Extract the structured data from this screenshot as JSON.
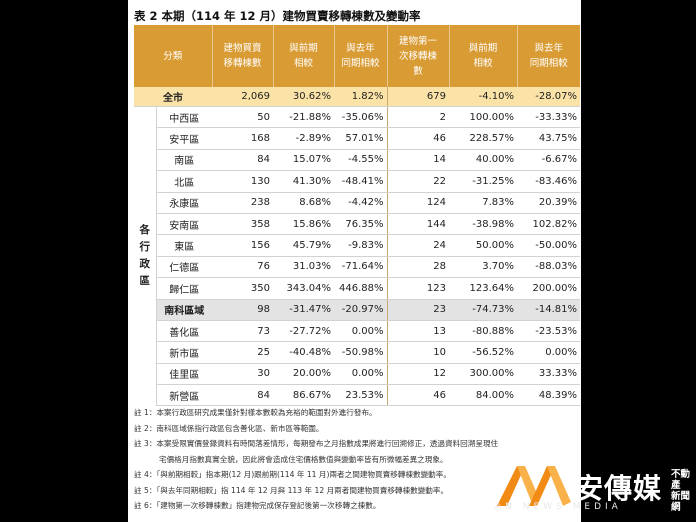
{
  "title": "表 2 本期（114 年 12 月）建物買賣移轉棟數及變動率",
  "headers": {
    "category": "分類",
    "transfers_line1": "建物買賣",
    "transfers_line2": "移轉棟數",
    "mom_line1": "與前期",
    "mom_line2": "相較",
    "yoy_line1": "與去年",
    "yoy_line2": "同期相較",
    "first_line1": "建物第一",
    "first_line2": "次移轉棟",
    "first_line3": "數",
    "first_mom_line1": "與前期",
    "first_mom_line2": "相較",
    "first_yoy_line1": "與去年",
    "first_yoy_line2": "同期相較"
  },
  "total": {
    "name": "全市",
    "transfers": "2,069",
    "mom": "30.62%",
    "yoy": "1.82%",
    "first": "679",
    "first_mom": "-4.10%",
    "first_yoy": "-28.07%"
  },
  "group_label": [
    "各",
    "行",
    "政",
    "區"
  ],
  "rows": [
    {
      "name": "中西區",
      "transfers": "50",
      "mom": "-21.88%",
      "yoy": "-35.06%",
      "first": "2",
      "first_mom": "100.00%",
      "first_yoy": "-33.33%"
    },
    {
      "name": "安平區",
      "transfers": "168",
      "mom": "-2.89%",
      "yoy": "57.01%",
      "first": "46",
      "first_mom": "228.57%",
      "first_yoy": "43.75%"
    },
    {
      "name": "南區",
      "transfers": "84",
      "mom": "15.07%",
      "yoy": "-4.55%",
      "first": "14",
      "first_mom": "40.00%",
      "first_yoy": "-6.67%"
    },
    {
      "name": "北區",
      "transfers": "130",
      "mom": "41.30%",
      "yoy": "-48.41%",
      "first": "22",
      "first_mom": "-31.25%",
      "first_yoy": "-83.46%"
    },
    {
      "name": "永康區",
      "transfers": "238",
      "mom": "8.68%",
      "yoy": "-4.42%",
      "first": "124",
      "first_mom": "7.83%",
      "first_yoy": "20.39%"
    },
    {
      "name": "安南區",
      "transfers": "358",
      "mom": "15.86%",
      "yoy": "76.35%",
      "first": "144",
      "first_mom": "-38.98%",
      "first_yoy": "102.82%"
    },
    {
      "name": "東區",
      "transfers": "156",
      "mom": "45.79%",
      "yoy": "-9.83%",
      "first": "24",
      "first_mom": "50.00%",
      "first_yoy": "-50.00%"
    },
    {
      "name": "仁德區",
      "transfers": "76",
      "mom": "31.03%",
      "yoy": "-71.64%",
      "first": "28",
      "first_mom": "3.70%",
      "first_yoy": "-88.03%"
    },
    {
      "name": "歸仁區",
      "transfers": "350",
      "mom": "343.04%",
      "yoy": "446.88%",
      "first": "123",
      "first_mom": "123.64%",
      "first_yoy": "200.00%"
    },
    {
      "name": "南科區域",
      "transfers": "98",
      "mom": "-31.47%",
      "yoy": "-20.97%",
      "first": "23",
      "first_mom": "-74.73%",
      "first_yoy": "-14.81%",
      "highlight": true
    },
    {
      "name": "善化區",
      "transfers": "73",
      "mom": "-27.72%",
      "yoy": "0.00%",
      "first": "13",
      "first_mom": "-80.88%",
      "first_yoy": "-23.53%"
    },
    {
      "name": "新市區",
      "transfers": "25",
      "mom": "-40.48%",
      "yoy": "-50.98%",
      "first": "10",
      "first_mom": "-56.52%",
      "first_yoy": "0.00%"
    },
    {
      "name": "佳里區",
      "transfers": "30",
      "mom": "20.00%",
      "yoy": "0.00%",
      "first": "12",
      "first_mom": "300.00%",
      "first_yoy": "33.33%"
    },
    {
      "name": "新營區",
      "transfers": "84",
      "mom": "86.67%",
      "yoy": "23.53%",
      "first": "46",
      "first_mom": "84.00%",
      "first_yoy": "48.39%"
    }
  ],
  "notes": [
    {
      "text": "註 1：本案行政區研究成果僅針對樣本數較為充裕的範圍對外進行發布。"
    },
    {
      "text": "註 2：南科區域係指行政區包含善化區、新市區等範圍。"
    },
    {
      "text": "註 3：本案受限實價登錄資料有時間落差情形，每期發布之月指數成果將進行回溯修正，透過資料回溯呈現住"
    },
    {
      "text": "宅價格月指數真實全貌，因此將會造成住宅價格數值與變動率皆有所微幅差異之現象。",
      "cont": true
    },
    {
      "text": "註 4：「與前期相較」指本期(12 月)跟前期(114 年 11 月)兩者之間建物買賣移轉棟數變動率。"
    },
    {
      "text": "註 5：「與去年同期相較」指 114 年 12 月與 113 年 12 月兩者間建物買賣移轉棟數變動率。"
    },
    {
      "text": "註 6：「建物第一次移轉棟數」指建物完成保存登記後第一次移轉之棟數。"
    }
  ],
  "watermark": {
    "brand": "安傳媒",
    "side_line1": "不動產",
    "side_line2": "新聞網",
    "sub": "AN NEWS MEDIA",
    "colors": {
      "mark": "#f28a16",
      "text": "#ffffff"
    }
  }
}
